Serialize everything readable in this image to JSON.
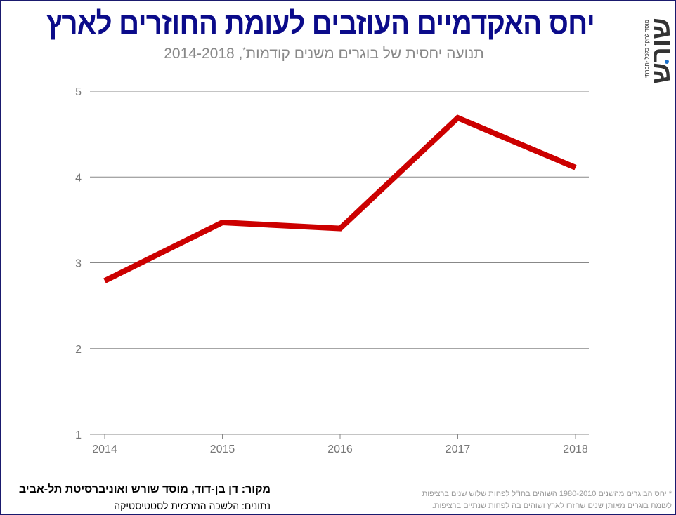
{
  "title": "יחס האקדמיים העוזבים לעומת החוזרים לארץ",
  "subtitle": "תנועה יחסית של בוגרים משנים קודמות",
  "subtitle_mark": "*",
  "subtitle_years": ", 2014-2018",
  "logo": {
    "word": "שורש",
    "tagline": "מוסד לחקר כלכלי-חברתי",
    "dot_color": "#1a6fc9"
  },
  "footer": {
    "source": "מקור:  דן בן-דוד, מוסד שורש ואוניברסיטת תל-אביב",
    "data": "נתונים: הלשכה המרכזית לסטטיסטיקה",
    "note_line1": "* יחס הבוגרים מהשנים 1980-2010 השוהים בחו\"ל לפחות שלוש שנים ברציפות",
    "note_line2": "לעומת בוגרים מאותן שנים שחזרו לארץ ושוהים בה לפחות שנתיים ברציפות."
  },
  "chart_data": {
    "type": "line",
    "categories": [
      "2014",
      "2015",
      "2016",
      "2017",
      "2018"
    ],
    "values": [
      2.79,
      3.47,
      3.4,
      4.69,
      4.11
    ],
    "ylim": [
      1,
      5
    ],
    "yticks": [
      "1",
      "2",
      "3",
      "4",
      "5"
    ],
    "grid": true,
    "line_color": "#cc0000",
    "title_color": "#0b0b8a"
  }
}
